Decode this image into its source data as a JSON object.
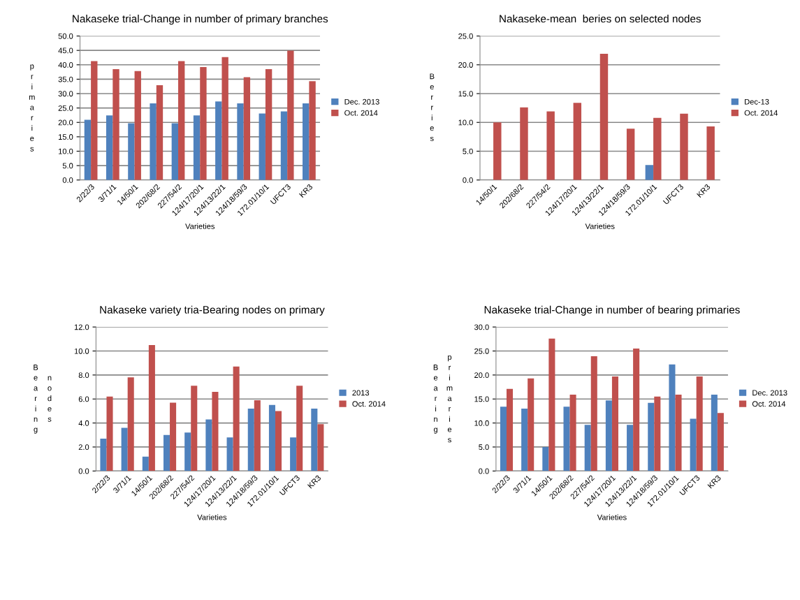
{
  "chart_data": [
    {
      "type": "bar",
      "title": "Nakaseke trial-Change in number of primary branches",
      "xlabel": "Varieties",
      "ylabel": "primaries",
      "categories": [
        "2/22/3",
        "3/71/1",
        "14/50/1",
        "202/68/2",
        "227/54/2",
        "124/17/20/1",
        "124/13/22/1",
        "124/18/59/3",
        "172.01/10/1",
        "UFCT3",
        "KR3"
      ],
      "series": [
        {
          "name": "Dec. 2013",
          "color": "#4f81bd",
          "values": [
            20.9,
            22.4,
            19.7,
            26.6,
            19.7,
            22.4,
            27.3,
            26.6,
            23.1,
            23.8,
            26.6
          ]
        },
        {
          "name": "Oct. 2014",
          "color": "#c0504d",
          "values": [
            41.3,
            38.5,
            37.8,
            32.9,
            41.3,
            39.2,
            42.7,
            35.7,
            38.5,
            44.9,
            34.3
          ]
        }
      ],
      "ylim": [
        0,
        50
      ],
      "yticks": [
        {
          "value": 0,
          "label": "0.0"
        },
        {
          "value": 5,
          "label": "5.0"
        },
        {
          "value": 10,
          "label": "10.0"
        },
        {
          "value": 15,
          "label": "15.0"
        },
        {
          "value": 20,
          "label": "20.0"
        },
        {
          "value": 25,
          "label": "25.0"
        },
        {
          "value": 30,
          "label": "30.0"
        },
        {
          "value": 35,
          "label": "35.0"
        },
        {
          "value": 40,
          "label": "40.0"
        },
        {
          "value": 45,
          "label": "45.0"
        },
        {
          "value": 50,
          "label": "50.0"
        }
      ],
      "grid": "y",
      "legend": "right"
    },
    {
      "type": "bar",
      "title": "Nakaseke-mean  beries on selected nodes",
      "xlabel": "Varieties",
      "ylabel": "Berries",
      "categories": [
        "14/50/1",
        "202/68/2",
        "227/54/2",
        "124/17/20/1",
        "124/13/22/1",
        "124/18/59/3",
        "172.01/10/1",
        "UFCT3",
        "KR3"
      ],
      "series": [
        {
          "name": "Dec-13",
          "color": "#4f81bd",
          "values": [
            null,
            null,
            null,
            null,
            null,
            null,
            2.6,
            null,
            null
          ]
        },
        {
          "name": "Oct. 2014",
          "color": "#c0504d",
          "values": [
            10.0,
            12.6,
            11.9,
            13.4,
            21.9,
            8.9,
            10.8,
            11.5,
            9.3
          ]
        }
      ],
      "ylim": [
        0,
        25
      ],
      "yticks": [
        {
          "value": 0,
          "label": "0.0"
        },
        {
          "value": 5,
          "label": "5.0"
        },
        {
          "value": 10,
          "label": "10.0"
        },
        {
          "value": 15,
          "label": "15.0"
        },
        {
          "value": 20,
          "label": "20.0"
        },
        {
          "value": 25,
          "label": "25.0"
        }
      ],
      "grid": "y",
      "legend": "right"
    },
    {
      "type": "bar",
      "title": "Nakaseke variety tria-Bearing nodes on primary",
      "xlabel": "Varieties",
      "ylabel": "Bearing nodes",
      "categories": [
        "2/22/3",
        "3/71/1",
        "14/50/1",
        "202/68/2",
        "227/54/2",
        "124/17/20/1",
        "124/13/22/1",
        "124/18/59/3",
        "172.01/10/1",
        "UFCT3",
        "KR3"
      ],
      "series": [
        {
          "name": "2013",
          "color": "#4f81bd",
          "values": [
            2.7,
            3.6,
            1.2,
            3.0,
            3.2,
            4.3,
            2.8,
            5.2,
            5.5,
            2.8,
            5.2
          ]
        },
        {
          "name": "Oct. 2014",
          "color": "#c0504d",
          "values": [
            6.2,
            7.8,
            10.5,
            5.7,
            7.1,
            6.6,
            8.7,
            5.9,
            5.0,
            7.1,
            3.9
          ]
        }
      ],
      "ylim": [
        0,
        12
      ],
      "yticks": [
        {
          "value": 0,
          "label": "0.0"
        },
        {
          "value": 2,
          "label": "2.0"
        },
        {
          "value": 4,
          "label": "4.0"
        },
        {
          "value": 6,
          "label": "6.0"
        },
        {
          "value": 8,
          "label": "8.0"
        },
        {
          "value": 10,
          "label": "10.0"
        },
        {
          "value": 12,
          "label": "12.0"
        }
      ],
      "grid": "y",
      "legend": "right"
    },
    {
      "type": "bar",
      "title": "Nakaseke trial-Change in number of bearing primaries",
      "xlabel": "Varieties",
      "ylabel": "Bearing primaries",
      "categories": [
        "2/22/3",
        "3/71/1",
        "14/50/1",
        "202/68/2",
        "227/54/2",
        "124/17/20/1",
        "124/13/22/1",
        "124/18/59/3",
        "172.01/10/1",
        "UFCT3",
        "KR3"
      ],
      "series": [
        {
          "name": "Dec. 2013",
          "color": "#4f81bd",
          "values": [
            13.4,
            13.0,
            5.0,
            13.4,
            9.6,
            14.7,
            9.6,
            14.2,
            22.2,
            10.9,
            15.9
          ]
        },
        {
          "name": "Oct. 2014",
          "color": "#c0504d",
          "values": [
            17.1,
            19.3,
            27.6,
            15.9,
            23.9,
            19.7,
            25.5,
            15.5,
            15.9,
            19.7,
            12.1
          ]
        }
      ],
      "ylim": [
        0,
        30
      ],
      "yticks": [
        {
          "value": 0,
          "label": "0.0"
        },
        {
          "value": 5,
          "label": "5.0"
        },
        {
          "value": 10,
          "label": "10.0"
        },
        {
          "value": 15,
          "label": "15.0"
        },
        {
          "value": 20,
          "label": "20.0"
        },
        {
          "value": 25,
          "label": "25.0"
        },
        {
          "value": 30,
          "label": "30.0"
        }
      ],
      "grid": "y",
      "legend": "right"
    }
  ]
}
